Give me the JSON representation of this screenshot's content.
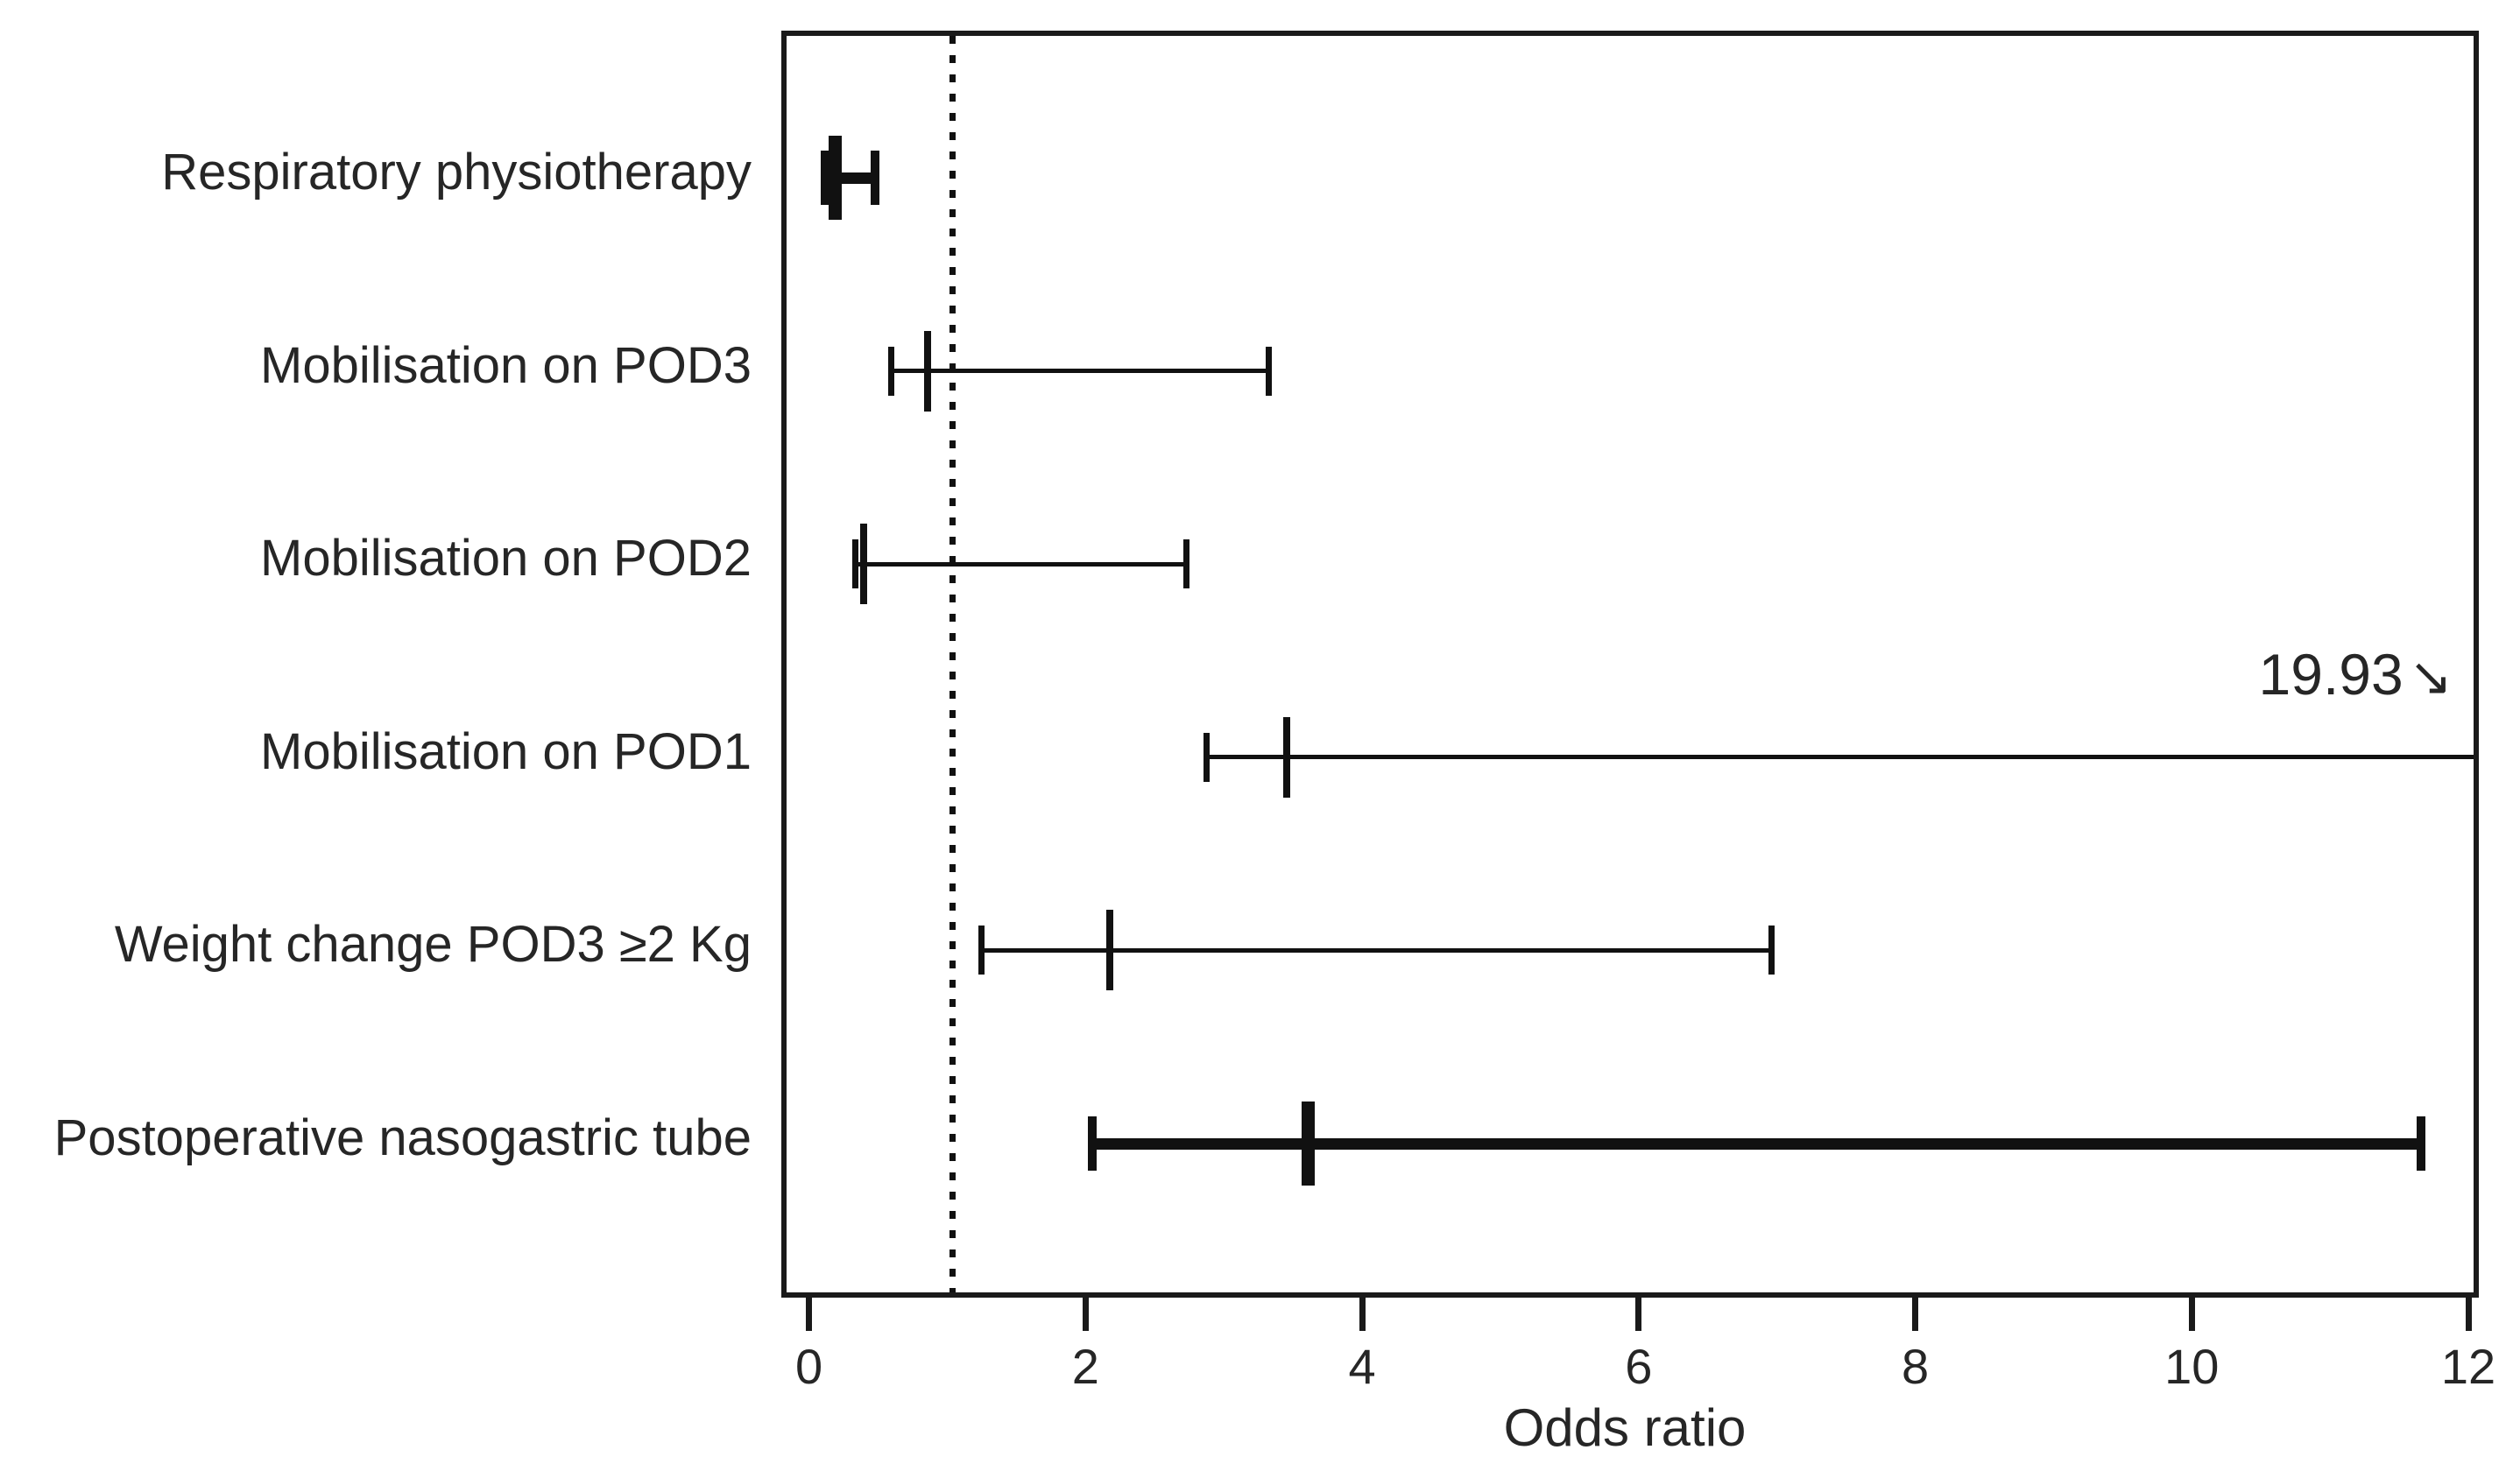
{
  "chart_data": {
    "type": "scatter",
    "subtype": "forest-plot-odds-ratios-with-95CI-error-bars",
    "title": "",
    "xlabel": "Odds ratio",
    "ylabel": "",
    "xlim": [
      -0.2,
      12
    ],
    "xticks": [
      0,
      2,
      4,
      6,
      8,
      10,
      12
    ],
    "grid": false,
    "legend": "none",
    "reference_line": {
      "x": 1,
      "style": "dotted",
      "color": "#111111"
    },
    "axis_color": "#1a1a1a",
    "marker_style": "vertical-tick-with-caps",
    "rows": [
      {
        "label": "Respiratory physiotherapy",
        "or": 0.15,
        "ci_low": 0.08,
        "ci_high": 0.44,
        "weight": "heavy",
        "clipped": false
      },
      {
        "label": "Mobilisation on POD3",
        "or": 0.82,
        "ci_low": 0.56,
        "ci_high": 3.29,
        "weight": "light",
        "clipped": false
      },
      {
        "label": "Mobilisation on POD2",
        "or": 0.36,
        "ci_low": 0.3,
        "ci_high": 2.69,
        "weight": "light",
        "clipped": false
      },
      {
        "label": "Mobilisation on POD1",
        "or": 3.42,
        "ci_low": 2.84,
        "ci_high": 19.93,
        "weight": "light",
        "clipped": true,
        "annotation": "19.93",
        "annotation_arrow": "↘"
      },
      {
        "label": "Weight change POD3 ≥2 Kg",
        "or": 2.14,
        "ci_low": 1.21,
        "ci_high": 6.92,
        "weight": "light",
        "clipped": false
      },
      {
        "label": "Postoperative nasogastric tube",
        "or": 3.57,
        "ci_low": 2.01,
        "ci_high": 11.62,
        "weight": "heavy",
        "clipped": false
      }
    ]
  }
}
